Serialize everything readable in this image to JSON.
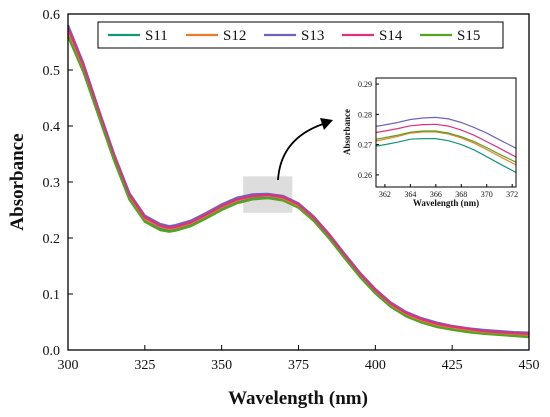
{
  "chart_data": [
    {
      "type": "line",
      "xlabel": "Wavelength (nm)",
      "ylabel": "Absorbance",
      "xlim": [
        300,
        450
      ],
      "ylim": [
        0.0,
        0.6
      ],
      "xticks": [
        "300",
        "325",
        "350",
        "375",
        "400",
        "425",
        "450"
      ],
      "yticks": [
        "0.0",
        "0.1",
        "0.2",
        "0.3",
        "0.4",
        "0.5",
        "0.6"
      ],
      "grid": false,
      "legend": "top, horizontal",
      "x": [
        300,
        305,
        310,
        315,
        320,
        325,
        330,
        333,
        335,
        340,
        345,
        350,
        355,
        360,
        365,
        370,
        375,
        380,
        385,
        390,
        395,
        400,
        405,
        410,
        415,
        420,
        425,
        430,
        435,
        440,
        445,
        450
      ],
      "series": [
        {
          "name": "S11",
          "color": "#17957a",
          "values": [
            0.565,
            0.5,
            0.42,
            0.34,
            0.27,
            0.23,
            0.216,
            0.213,
            0.215,
            0.223,
            0.237,
            0.252,
            0.264,
            0.271,
            0.272,
            0.268,
            0.255,
            0.231,
            0.2,
            0.165,
            0.131,
            0.102,
            0.078,
            0.061,
            0.05,
            0.042,
            0.037,
            0.033,
            0.03,
            0.028,
            0.026,
            0.024
          ]
        },
        {
          "name": "S12",
          "color": "#ef7a2a",
          "values": [
            0.57,
            0.505,
            0.424,
            0.344,
            0.274,
            0.234,
            0.22,
            0.216,
            0.218,
            0.226,
            0.24,
            0.255,
            0.267,
            0.274,
            0.276,
            0.271,
            0.258,
            0.234,
            0.203,
            0.168,
            0.134,
            0.105,
            0.081,
            0.064,
            0.053,
            0.045,
            0.04,
            0.036,
            0.032,
            0.03,
            0.028,
            0.027
          ]
        },
        {
          "name": "S13",
          "color": "#6f64b8",
          "values": [
            0.58,
            0.512,
            0.43,
            0.35,
            0.28,
            0.24,
            0.225,
            0.221,
            0.223,
            0.231,
            0.245,
            0.26,
            0.272,
            0.278,
            0.279,
            0.275,
            0.262,
            0.238,
            0.207,
            0.172,
            0.138,
            0.109,
            0.085,
            0.068,
            0.057,
            0.049,
            0.043,
            0.039,
            0.036,
            0.034,
            0.032,
            0.031
          ]
        },
        {
          "name": "S14",
          "color": "#e0307e",
          "values": [
            0.575,
            0.508,
            0.427,
            0.347,
            0.277,
            0.237,
            0.222,
            0.218,
            0.22,
            0.228,
            0.242,
            0.257,
            0.269,
            0.275,
            0.277,
            0.273,
            0.26,
            0.236,
            0.205,
            0.17,
            0.136,
            0.107,
            0.083,
            0.066,
            0.055,
            0.047,
            0.042,
            0.038,
            0.034,
            0.032,
            0.03,
            0.029
          ]
        },
        {
          "name": "S15",
          "color": "#55a324",
          "values": [
            0.56,
            0.496,
            0.417,
            0.338,
            0.268,
            0.229,
            0.214,
            0.211,
            0.213,
            0.221,
            0.235,
            0.25,
            0.262,
            0.269,
            0.271,
            0.267,
            0.254,
            0.23,
            0.199,
            0.164,
            0.13,
            0.101,
            0.077,
            0.06,
            0.049,
            0.041,
            0.036,
            0.032,
            0.029,
            0.027,
            0.025,
            0.023
          ]
        }
      ],
      "highlight_region": {
        "x": [
          357,
          373
        ],
        "y": [
          0.245,
          0.31
        ]
      }
    },
    {
      "type": "line",
      "xlabel": "Wavelength (nm)",
      "ylabel": "Absorbance",
      "xlim": [
        361.3,
        372.3
      ],
      "ylim": [
        0.256,
        0.292
      ],
      "xticks": [
        "362",
        "364",
        "366",
        "368",
        "370",
        "372"
      ],
      "yticks": [
        "0.26",
        "0.27",
        "0.28",
        "0.29"
      ],
      "grid": false,
      "x": [
        361.3,
        362,
        363,
        364,
        365,
        366,
        367,
        368,
        369,
        370,
        371,
        372.3
      ],
      "series": [
        {
          "name": "S11",
          "color": "#17957a",
          "values": [
            0.2695,
            0.27,
            0.2708,
            0.2718,
            0.272,
            0.272,
            0.2713,
            0.27,
            0.2683,
            0.266,
            0.2637,
            0.2608
          ]
        },
        {
          "name": "S12",
          "color": "#ef7a2a",
          "values": [
            0.2712,
            0.2718,
            0.2727,
            0.2738,
            0.2742,
            0.2742,
            0.2735,
            0.2722,
            0.2705,
            0.2684,
            0.2661,
            0.2633
          ]
        },
        {
          "name": "S13",
          "color": "#6f64b8",
          "values": [
            0.276,
            0.2765,
            0.2773,
            0.2783,
            0.2788,
            0.279,
            0.2785,
            0.2773,
            0.2757,
            0.2738,
            0.2716,
            0.2688
          ]
        },
        {
          "name": "S14",
          "color": "#e0307e",
          "values": [
            0.274,
            0.2745,
            0.2753,
            0.2762,
            0.2766,
            0.2767,
            0.2761,
            0.2748,
            0.2731,
            0.271,
            0.2688,
            0.2659
          ]
        },
        {
          "name": "S15",
          "color": "#55a324",
          "values": [
            0.2718,
            0.2723,
            0.2731,
            0.2741,
            0.2745,
            0.2745,
            0.2738,
            0.2726,
            0.271,
            0.269,
            0.2668,
            0.2642
          ]
        }
      ]
    }
  ]
}
